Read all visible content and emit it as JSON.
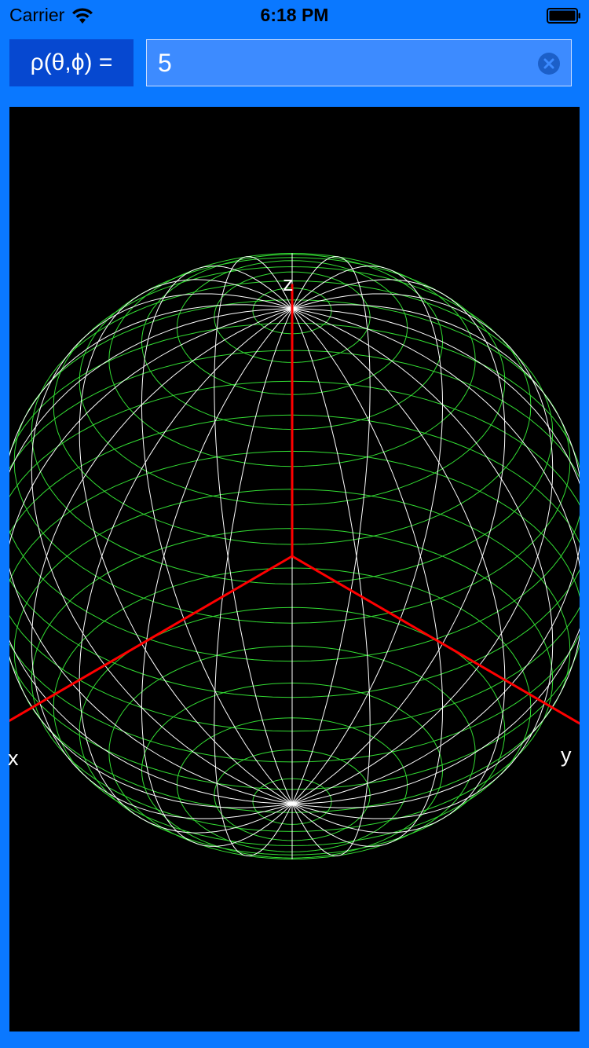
{
  "status_bar": {
    "carrier": "Carrier",
    "time": "6:18 PM",
    "wifi_icon": "wifi-icon",
    "battery_icon": "battery-icon"
  },
  "formula": {
    "label": "ρ(θ,ϕ) =",
    "value": "5",
    "clear_icon": "clear-circle-x-icon"
  },
  "plot": {
    "axis_labels": {
      "x": "x",
      "y": "y",
      "z": "z"
    },
    "colors": {
      "background": "#000000",
      "axis": "#ff0000",
      "meridian": "#ffffff",
      "parallel": "#33dd33"
    }
  },
  "theme": {
    "accent": "#0a78ff",
    "label_bg": "#0648d0",
    "input_bg": "#3d8bff"
  }
}
